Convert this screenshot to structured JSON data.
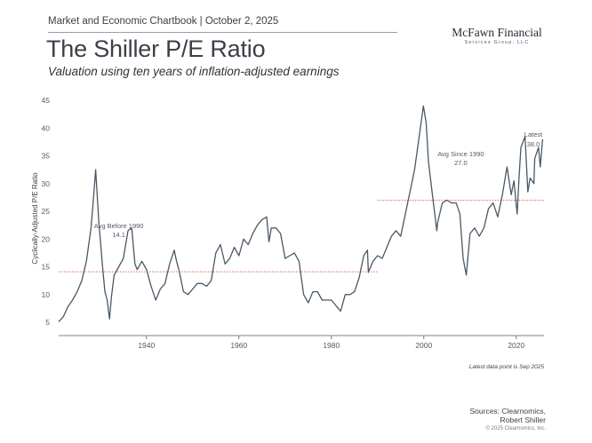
{
  "header": {
    "kicker": "Market and Economic Chartbook | October 2, 2025",
    "title": "The Shiller P/E Ratio",
    "subtitle": "Valuation using ten years of inflation-adjusted earnings"
  },
  "logo": {
    "name": "McFawn Financial",
    "sub": "Services Group, LLC"
  },
  "footer": {
    "sources_line1": "Sources: Clearnomics,",
    "sources_line2": "Robert Shiller",
    "copyright": "© 2025 Clearnomics, Inc."
  },
  "chart_data": {
    "type": "line",
    "ylabel": "Cyclically-Adjusted P/E Ratio",
    "xlabel": "",
    "ylim": [
      5,
      45
    ],
    "xlim": [
      1921,
      2026
    ],
    "yticks": [
      5,
      10,
      15,
      20,
      25,
      30,
      35,
      40,
      45
    ],
    "xticks": [
      1940,
      1960,
      1980,
      2000,
      2020
    ],
    "grid": false,
    "series": [
      {
        "values_x": [
          1921,
          1922,
          1923,
          1924,
          1925,
          1926,
          1927,
          1928,
          1928.5,
          1929,
          1929.7,
          1930.5,
          1931,
          1931.5,
          1932,
          1932.4,
          1933,
          1934,
          1935,
          1936,
          1936.8,
          1937.5,
          1938,
          1939,
          1940,
          1941,
          1942,
          1943,
          1944,
          1945,
          1946,
          1946.5,
          1947,
          1948,
          1949,
          1950,
          1951,
          1952,
          1953,
          1954,
          1955,
          1956,
          1957,
          1958,
          1959,
          1960,
          1961,
          1962,
          1963,
          1964,
          1965,
          1966,
          1966.5,
          1967,
          1968,
          1969,
          1970,
          1971,
          1972,
          1973,
          1974,
          1975,
          1976,
          1977,
          1978,
          1979,
          1980,
          1981,
          1982,
          1982.5,
          1983,
          1984,
          1985,
          1986,
          1987,
          1987.8,
          1988,
          1989,
          1990,
          1991,
          1992,
          1993,
          1994,
          1995,
          1996,
          1997,
          1998,
          1999,
          1999.9,
          2000.5,
          2001,
          2002,
          2002.8,
          2003,
          2004,
          2005,
          2006,
          2007,
          2007.8,
          2008.5,
          2009.2,
          2010,
          2011,
          2012,
          2013,
          2014,
          2015,
          2016,
          2017,
          2018,
          2018.9,
          2019.5,
          2020.2,
          2020.6,
          2021,
          2021.9,
          2022.5,
          2023,
          2023.8,
          2024,
          2024.8,
          2025.2,
          2025.7
        ],
        "values_y": [
          5.1,
          6.0,
          7.8,
          9.0,
          10.5,
          12.5,
          16.0,
          22.0,
          27.0,
          32.5,
          23.0,
          15.0,
          10.5,
          9.0,
          5.6,
          9.5,
          13.5,
          15.0,
          16.5,
          21.5,
          22.0,
          15.5,
          14.5,
          16.0,
          14.5,
          11.5,
          9.0,
          11.0,
          12.0,
          15.5,
          18.0,
          16.0,
          14.5,
          10.5,
          10.0,
          11.0,
          12.0,
          12.0,
          11.5,
          12.5,
          17.5,
          19.0,
          15.5,
          16.5,
          18.5,
          17.0,
          20.0,
          19.0,
          21.0,
          22.5,
          23.5,
          24.0,
          19.5,
          22.0,
          22.0,
          21.0,
          16.5,
          17.0,
          17.5,
          16.0,
          10.0,
          8.5,
          10.5,
          10.5,
          9.0,
          9.0,
          9.0,
          8.0,
          7.0,
          8.5,
          10.0,
          10.0,
          10.5,
          13.0,
          17.0,
          18.0,
          14.0,
          16.0,
          17.0,
          16.5,
          18.5,
          20.5,
          21.5,
          20.5,
          24.5,
          28.5,
          32.5,
          38.5,
          44.0,
          41.0,
          34.0,
          27.0,
          21.5,
          23.0,
          26.5,
          27.0,
          26.5,
          26.5,
          24.5,
          16.5,
          13.5,
          21.0,
          22.0,
          20.5,
          22.0,
          25.5,
          26.5,
          24.0,
          28.0,
          33.0,
          28.0,
          30.5,
          24.5,
          31.0,
          36.5,
          38.5,
          28.5,
          31.0,
          30.0,
          34.5,
          36.5,
          33.0,
          38.0
        ]
      }
    ],
    "annotations": {
      "avg_before_label": "Avg Before 1990",
      "avg_before_value": "14.1",
      "avg_since_label": "Avg Since 1990",
      "avg_since_value": "27.0",
      "latest_label": "Latest",
      "latest_value": "38.0",
      "note": "Latest data point is Sep 2025"
    },
    "reference_lines": [
      {
        "value": 14.1,
        "from": 1921,
        "to": 1990
      },
      {
        "value": 27.0,
        "from": 1990,
        "to": 2026
      }
    ],
    "colors": {
      "line": "#4a5866",
      "avg": "#e36b6b",
      "axis": "#555b61"
    }
  }
}
